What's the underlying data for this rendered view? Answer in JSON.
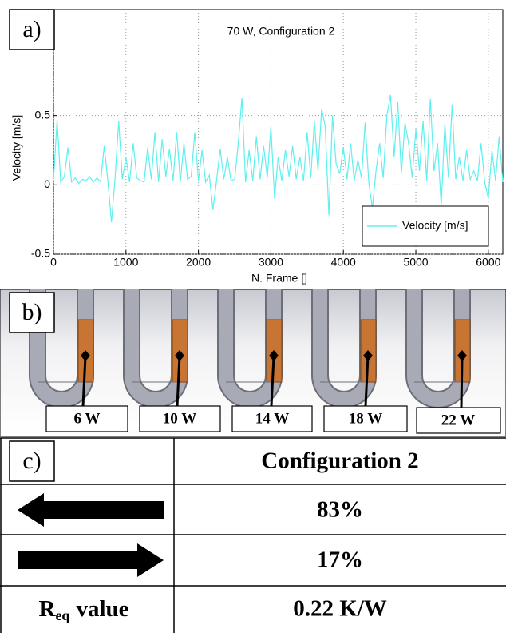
{
  "panel_labels": [
    "a)",
    "b)",
    "c)"
  ],
  "chart_data": {
    "type": "line",
    "title": "70 W, Configuration 2",
    "x_label": "N. Frame []",
    "y_label": "Velocity [m/s]",
    "x": [
      0,
      50,
      100,
      150,
      200,
      250,
      300,
      350,
      400,
      450,
      500,
      550,
      600,
      650,
      700,
      750,
      800,
      850,
      900,
      950,
      1000,
      1050,
      1100,
      1150,
      1200,
      1250,
      1300,
      1350,
      1400,
      1450,
      1500,
      1550,
      1600,
      1650,
      1700,
      1750,
      1800,
      1850,
      1900,
      1950,
      2000,
      2050,
      2100,
      2150,
      2200,
      2250,
      2300,
      2350,
      2400,
      2450,
      2500,
      2550,
      2600,
      2650,
      2700,
      2750,
      2800,
      2850,
      2900,
      2950,
      3000,
      3050,
      3100,
      3150,
      3200,
      3250,
      3300,
      3350,
      3400,
      3450,
      3500,
      3550,
      3600,
      3650,
      3700,
      3750,
      3800,
      3850,
      3900,
      3950,
      4000,
      4050,
      4100,
      4150,
      4200,
      4250,
      4300,
      4350,
      4400,
      4450,
      4500,
      4550,
      4600,
      4650,
      4700,
      4750,
      4800,
      4850,
      4900,
      4950,
      5000,
      5050,
      5100,
      5150,
      5200,
      5250,
      5300,
      5350,
      5400,
      5450,
      5500,
      5550,
      5600,
      5650,
      5700,
      5750,
      5800,
      5850,
      5900,
      5950,
      6000,
      6050,
      6100,
      6150,
      6200
    ],
    "series": [
      {
        "name": "Velocity [m/s]",
        "color": "#5ef0ee",
        "values": [
          0.03,
          0.47,
          0.02,
          0.06,
          0.27,
          0.02,
          0.05,
          0.01,
          0.04,
          0.03,
          0.06,
          0.02,
          0.05,
          0.02,
          0.28,
          0.03,
          -0.27,
          0.05,
          0.46,
          0.04,
          0.2,
          0.02,
          0.3,
          0.05,
          0.03,
          0.02,
          0.27,
          0.04,
          0.38,
          0.02,
          0.33,
          0.06,
          0.26,
          0.03,
          0.38,
          0.02,
          0.3,
          0.04,
          0.06,
          0.38,
          0.03,
          0.25,
          0.02,
          0.07,
          -0.18,
          0.03,
          0.26,
          0.04,
          0.2,
          0.03,
          0.04,
          0.3,
          0.63,
          0.02,
          0.25,
          0.03,
          0.35,
          0.04,
          0.28,
          0.05,
          0.42,
          -0.1,
          0.2,
          0.03,
          0.25,
          0.06,
          0.28,
          0.04,
          0.2,
          0.03,
          0.38,
          0.05,
          0.46,
          0.1,
          0.55,
          0.42,
          -0.22,
          0.5,
          0.15,
          0.08,
          0.27,
          0.04,
          0.3,
          0.03,
          0.18,
          0.05,
          0.45,
          0.02,
          -0.17,
          0.1,
          0.3,
          0.05,
          0.5,
          0.65,
          0.2,
          0.6,
          0.08,
          0.45,
          0.3,
          0.05,
          0.4,
          0.1,
          0.46,
          0.03,
          0.62,
          0.1,
          0.3,
          -0.15,
          0.44,
          0.05,
          0.58,
          0.04,
          0.2,
          0.03,
          0.25,
          0.04,
          0.1,
          0.03,
          0.3,
          0.02,
          -0.1,
          0.25,
          0.03,
          0.35,
          0.02
        ]
      }
    ],
    "xlim": [
      0,
      6200
    ],
    "xticks": [
      0,
      1000,
      2000,
      3000,
      4000,
      5000,
      6000
    ],
    "ylim": [
      -0.5,
      1
    ],
    "yticks": [
      -0.5,
      0,
      0.5
    ],
    "grid": true,
    "legend": "lower right"
  },
  "diagram": {
    "heaters": [
      "6 W",
      "10 W",
      "14 W",
      "18 W",
      "22 W"
    ]
  },
  "table": {
    "header": "Configuration 2",
    "rows": [
      {
        "value": "83%"
      },
      {
        "value": "17%"
      },
      {
        "label": {
          "main": "R",
          "sub": "eq",
          "rest": "value"
        },
        "value": "0.22 K/W"
      }
    ]
  }
}
